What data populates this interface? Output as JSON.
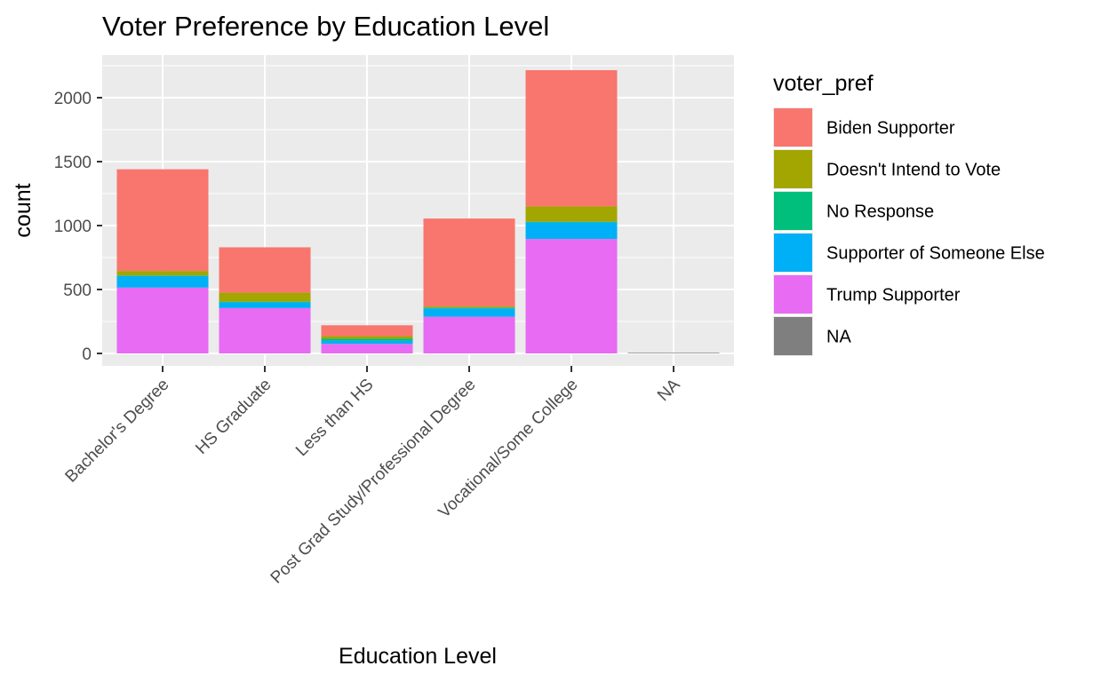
{
  "chart_data": {
    "type": "bar",
    "stacked": true,
    "title": "Voter Preference by Education Level",
    "xlabel": "Education Level",
    "ylabel": "count",
    "ylim": [
      0,
      2300
    ],
    "yticks": [
      0,
      500,
      1000,
      1500,
      2000
    ],
    "grid": true,
    "legend_position": "right",
    "legend_title": "voter_pref",
    "categories": [
      "Bachelor's Degree",
      "HS Graduate",
      "Less than HS",
      "Post Grad Study/Professional Degree",
      "Vocational/Some College",
      "NA"
    ],
    "series": [
      {
        "name": "Biden Supporter",
        "color": "#F8766D",
        "values": [
          795,
          355,
          85,
          688,
          1065,
          0
        ]
      },
      {
        "name": "Doesn't Intend to Vote",
        "color": "#A3A500",
        "values": [
          35,
          70,
          20,
          10,
          120,
          0
        ]
      },
      {
        "name": "No Response",
        "color": "#00BF7D",
        "values": [
          5,
          5,
          15,
          5,
          5,
          0
        ]
      },
      {
        "name": "Supporter of Someone Else",
        "color": "#00B0F6",
        "values": [
          90,
          45,
          25,
          65,
          130,
          0
        ]
      },
      {
        "name": "Trump Supporter",
        "color": "#E76BF3",
        "values": [
          515,
          355,
          75,
          287,
          895,
          0
        ]
      },
      {
        "name": "NA",
        "color": "#7F7F7F",
        "values": [
          0,
          0,
          0,
          0,
          0,
          5
        ]
      }
    ]
  },
  "colors": {
    "panel_background": "#EBEBEB",
    "grid_line": "#FFFFFF",
    "tick_text": "#4D4D4D"
  }
}
